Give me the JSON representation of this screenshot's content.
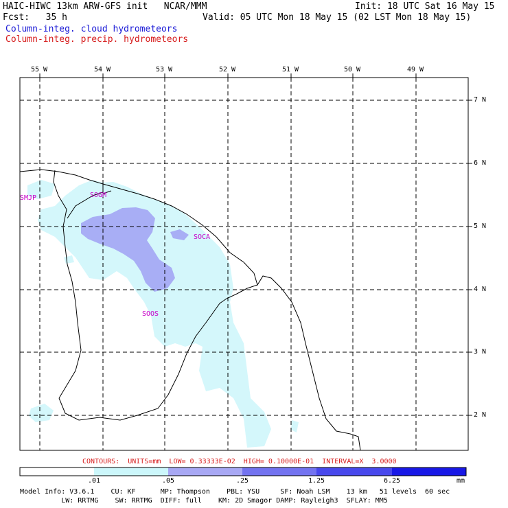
{
  "header": {
    "title_left": "HAIC-HIWC 13km ARW-GFS init   NCAR/MMM",
    "init": "Init: 18 UTC Sat 16 May 15",
    "fcst": "Fcst:   35 h",
    "valid": "Valid: 05 UTC Mon 18 May 15 (02 LST Mon 18 May 15)",
    "field1": "Column-integ. cloud hydrometeors",
    "field2": "Column-integ. precip. hydrometeors"
  },
  "lon_labels": [
    "55 W",
    "54 W",
    "53 W",
    "52 W",
    "51 W",
    "50 W",
    "49 W"
  ],
  "lat_labels": [
    "7 N",
    "6 N",
    "5 N",
    "4 N",
    "3 N",
    "2 N"
  ],
  "stations": [
    "SMJP",
    "SOGM",
    "SOCA",
    "SOOS"
  ],
  "contour_info": "CONTOURS:  UNITS=mm  LOW= 0.33333E-02  HIGH= 0.10000E-01  INTERVAL=X  3.0000",
  "colorbar": {
    "labels": [
      ".01",
      ".05",
      ".25",
      "1.25",
      "6.25"
    ],
    "unit": "mm",
    "colors": [
      "#ffffff",
      "#ccf7fb",
      "#a8a8f4",
      "#7373f0",
      "#4848ec",
      "#1818e6"
    ]
  },
  "footer": {
    "line1": "Model Info: V3.6.1    CU: KF      MP: Thompson    PBL: YSU     SF: Noah LSM    13 km   51 levels  60 sec",
    "line2": "          LW: RRTMG    SW: RRTMG  DIFF: full    KM: 2D Smagor DAMP: Rayleigh3  SFLAY: MM5"
  },
  "colors": {
    "cloud_light": "#d4f7fb",
    "cloud_mid": "#a8aef5",
    "cloud_label": "#1a1ad6",
    "precip_label": "#d61a1a"
  }
}
